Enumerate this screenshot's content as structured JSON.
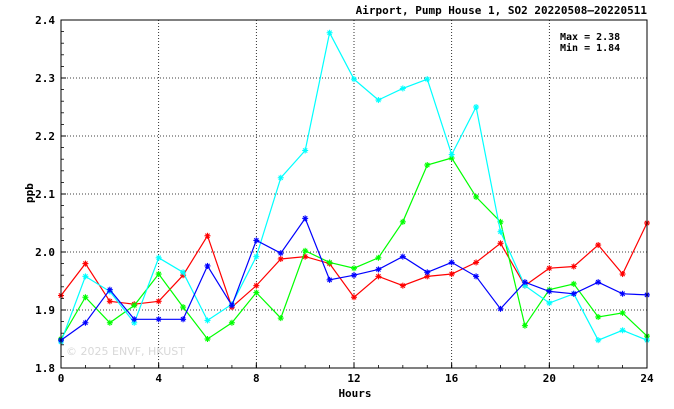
{
  "chart_data": {
    "type": "line",
    "title": "Airport, Pump House 1, SO2 20220508–20220511",
    "xlabel": "Hours",
    "ylabel": "ppb",
    "xlim": [
      0,
      24
    ],
    "ylim": [
      1.8,
      2.4
    ],
    "x_ticks": [
      "0",
      "4",
      "8",
      "12",
      "16",
      "20",
      "24"
    ],
    "y_ticks": [
      "1.8",
      "1.9",
      "2.0",
      "2.1",
      "2.2",
      "2.3",
      "2.4"
    ],
    "grid": true,
    "annotations": {
      "max": "Max = 2.38",
      "min": "Min = 1.84"
    },
    "watermark": "© 2025  ENVF, HKUST",
    "series": [
      {
        "color": "#ff0000",
        "x": [
          0,
          1,
          2,
          3,
          4,
          5,
          6,
          7,
          8,
          9,
          10,
          11,
          12,
          13,
          14,
          15,
          16,
          17,
          18,
          19,
          20,
          21,
          22,
          23,
          24
        ],
        "values": [
          1.925,
          1.98,
          1.915,
          1.91,
          1.915,
          1.96,
          2.028,
          1.905,
          1.942,
          1.988,
          1.992,
          1.98,
          1.922,
          1.958,
          1.942,
          1.958,
          1.962,
          1.982,
          2.015,
          1.942,
          1.972,
          1.975,
          2.012,
          1.962,
          2.05
        ]
      },
      {
        "color": "#00ff00",
        "x": [
          0,
          1,
          2,
          3,
          4,
          5,
          6,
          7,
          8,
          9,
          10,
          11,
          12,
          13,
          14,
          15,
          16,
          17,
          18,
          19,
          20,
          21,
          22,
          23,
          24
        ],
        "values": [
          1.85,
          1.922,
          1.878,
          1.908,
          1.962,
          1.905,
          1.85,
          1.878,
          1.93,
          1.886,
          2.002,
          1.982,
          1.972,
          1.99,
          2.052,
          2.15,
          2.162,
          2.095,
          2.052,
          1.873,
          1.935,
          1.945,
          1.888,
          1.895,
          1.855
        ]
      },
      {
        "color": "#00ffff",
        "x": [
          0,
          1,
          2,
          3,
          4,
          5,
          6,
          7,
          8,
          9,
          10,
          11,
          12,
          13,
          14,
          15,
          16,
          17,
          18,
          19,
          20,
          21,
          22,
          23,
          24
        ],
        "values": [
          1.845,
          1.958,
          1.932,
          1.878,
          1.99,
          1.965,
          1.882,
          1.91,
          1.992,
          2.128,
          2.175,
          2.378,
          2.298,
          2.262,
          2.282,
          2.298,
          2.168,
          2.25,
          2.035,
          1.942,
          1.912,
          1.928,
          1.848,
          1.865,
          1.848
        ]
      },
      {
        "color": "#0000ff",
        "x": [
          0,
          1,
          2,
          3,
          4,
          5,
          6,
          7,
          8,
          9,
          10,
          11,
          12,
          13,
          14,
          15,
          16,
          17,
          18,
          19,
          20,
          21,
          22,
          23,
          24
        ],
        "values": [
          1.848,
          1.878,
          1.935,
          1.884,
          1.884,
          1.884,
          1.976,
          1.908,
          2.02,
          1.998,
          2.058,
          1.952,
          1.96,
          1.97,
          1.992,
          1.965,
          1.982,
          1.958,
          1.902,
          1.948,
          1.932,
          1.928,
          1.948,
          1.928,
          1.926
        ]
      }
    ]
  }
}
